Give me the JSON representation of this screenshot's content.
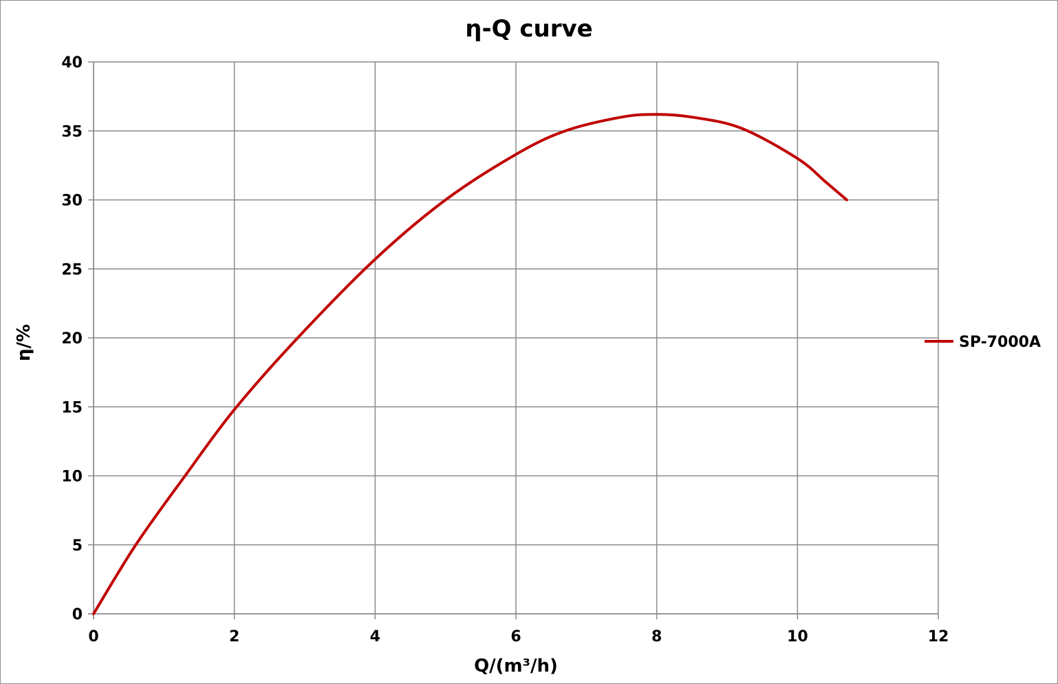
{
  "chart_data": {
    "type": "line",
    "title": "η-Q  curve",
    "xlabel": "Q/(m³/h)",
    "ylabel": "η/%",
    "xlim": [
      0,
      12
    ],
    "ylim": [
      0,
      40
    ],
    "xticks": [
      0,
      2,
      4,
      6,
      8,
      10,
      12
    ],
    "yticks": [
      0,
      5,
      10,
      15,
      20,
      25,
      30,
      35,
      40
    ],
    "grid": true,
    "legend_position": "right",
    "series": [
      {
        "name": "SP-7000A",
        "color": "#c00000",
        "x": [
          0,
          0.6,
          1.3,
          2.0,
          2.9,
          4.0,
          5.0,
          6.0,
          6.7,
          7.5,
          8.0,
          8.5,
          9.2,
          10.0,
          10.4,
          10.7
        ],
        "y": [
          0,
          5,
          10,
          14.8,
          20,
          25.7,
          30,
          33.3,
          35,
          36,
          36.2,
          36,
          35.2,
          33,
          31.3,
          30
        ]
      }
    ]
  }
}
